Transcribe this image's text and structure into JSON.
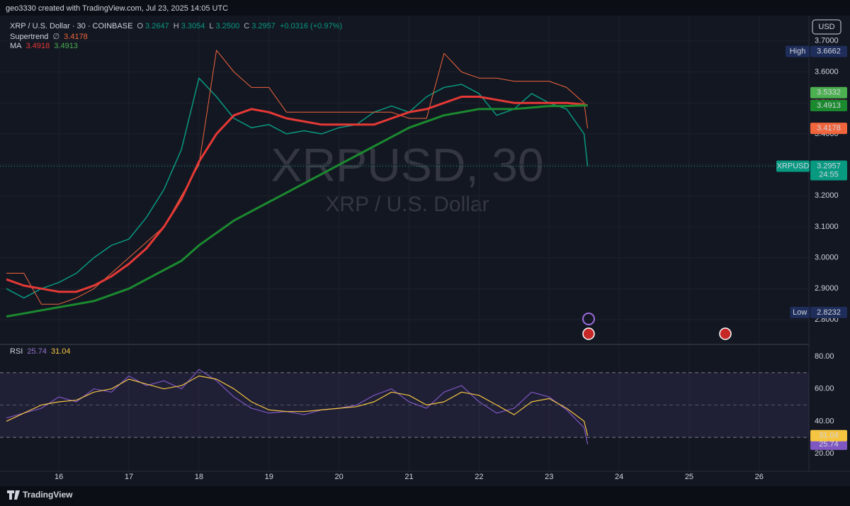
{
  "header": {
    "text": "geo3330 created with TradingView.com, Jul 23, 2025 14:05 UTC"
  },
  "footer": {
    "brand": "TradingView"
  },
  "currency": "USD",
  "legend": {
    "symbol": "XRP / U.S. Dollar · 30 · COINBASE",
    "o_label": "O",
    "o": "3.2647",
    "h_label": "H",
    "h": "3.3054",
    "l_label": "L",
    "l": "3.2500",
    "c_label": "C",
    "change": "+0.0316 (+0.97%)",
    "supertrend_label": "Supertrend",
    "supertrend_icon": "∅",
    "ma_label": "MA",
    "rsi_label": "RSI"
  },
  "chart_data": [
    {
      "type": "line",
      "title": "XRPUSD, 30",
      "subtitle": "XRP / U.S. Dollar",
      "x": [
        15.25,
        15.5,
        15.75,
        16,
        16.25,
        16.5,
        16.75,
        17,
        17.25,
        17.5,
        17.75,
        18,
        18.25,
        18.5,
        18.75,
        19,
        19.25,
        19.5,
        19.75,
        20,
        20.25,
        20.5,
        20.75,
        21,
        21.25,
        21.5,
        21.75,
        22,
        22.25,
        22.5,
        22.75,
        23,
        23.25,
        23.5,
        23.55
      ],
      "xlim": [
        15.24,
        26.71
      ],
      "xticks": [
        16,
        17,
        18,
        19,
        20,
        21,
        22,
        23,
        24,
        25,
        26
      ],
      "ylim": [
        2.7245,
        3.782
      ],
      "yticks": [
        {
          "value": 2.8,
          "label": "2.8000"
        },
        {
          "value": 2.9,
          "label": "2.9000"
        },
        {
          "value": 3.0,
          "label": "3.0000"
        },
        {
          "value": 3.1,
          "label": "3.1000"
        },
        {
          "value": 3.2,
          "label": "3.2000"
        },
        {
          "value": 3.3,
          "label": "3.3000"
        },
        {
          "value": 3.4,
          "label": "3.4000"
        },
        {
          "value": 3.5,
          "label": "3.5000"
        },
        {
          "value": 3.6,
          "label": "3.6000"
        },
        {
          "value": 3.7,
          "label": "3.7000"
        }
      ],
      "grid": true,
      "series": [
        {
          "color": "#089981",
          "width": 1.5,
          "values": [
            2.9,
            2.87,
            2.9,
            2.92,
            2.95,
            3.0,
            3.04,
            3.06,
            3.13,
            3.22,
            3.35,
            3.58,
            3.52,
            3.45,
            3.42,
            3.43,
            3.4,
            3.41,
            3.4,
            3.42,
            3.43,
            3.47,
            3.49,
            3.47,
            3.52,
            3.55,
            3.56,
            3.53,
            3.46,
            3.48,
            3.53,
            3.5,
            3.48,
            3.4,
            3.2957
          ]
        },
        {
          "color": "#f0653c",
          "width": 1,
          "axis_label": true,
          "values": [
            2.95,
            2.95,
            2.85,
            2.85,
            2.87,
            2.9,
            2.95,
            3.0,
            3.05,
            3.1,
            3.2,
            3.3,
            3.67,
            3.6,
            3.55,
            3.55,
            3.47,
            3.47,
            3.47,
            3.47,
            3.47,
            3.47,
            3.47,
            3.45,
            3.45,
            3.66,
            3.6,
            3.58,
            3.58,
            3.57,
            3.57,
            3.57,
            3.55,
            3.5,
            3.4178
          ]
        },
        {
          "color": "#e53935",
          "width": 3,
          "axis_label": true,
          "values": [
            2.93,
            2.91,
            2.9,
            2.89,
            2.89,
            2.91,
            2.94,
            2.98,
            3.03,
            3.1,
            3.19,
            3.31,
            3.4,
            3.46,
            3.48,
            3.47,
            3.45,
            3.44,
            3.43,
            3.43,
            3.43,
            3.43,
            3.45,
            3.47,
            3.48,
            3.5,
            3.52,
            3.52,
            3.51,
            3.5,
            3.5,
            3.5,
            3.5,
            3.495,
            3.4918
          ]
        },
        {
          "color": "#1b8a2f",
          "width": 3,
          "axis_label": true,
          "values": [
            2.81,
            2.82,
            2.83,
            2.84,
            2.85,
            2.86,
            2.88,
            2.9,
            2.93,
            2.96,
            2.99,
            3.04,
            3.08,
            3.12,
            3.15,
            3.18,
            3.21,
            3.24,
            3.27,
            3.3,
            3.33,
            3.36,
            3.39,
            3.42,
            3.44,
            3.46,
            3.47,
            3.48,
            3.48,
            3.48,
            3.485,
            3.49,
            3.49,
            3.492,
            3.4913
          ]
        }
      ],
      "price_labels": [
        {
          "label": "High",
          "value": 3.6662,
          "color": "#1e2d5a"
        },
        {
          "value": 3.5332,
          "color": "#4caf50"
        },
        {
          "label": "XRPUSD",
          "value": 3.2957,
          "sub": "24:55",
          "color": "#089981"
        },
        {
          "label": "Low",
          "value": 2.8232,
          "color": "#1e2d5a"
        }
      ]
    },
    {
      "type": "line",
      "title": "RSI",
      "x": [
        15.25,
        15.5,
        15.75,
        16,
        16.25,
        16.5,
        16.75,
        17,
        17.25,
        17.5,
        17.75,
        18,
        18.25,
        18.5,
        18.75,
        19,
        19.25,
        19.5,
        19.75,
        20,
        20.25,
        20.5,
        20.75,
        21,
        21.25,
        21.5,
        21.75,
        22,
        22.25,
        22.5,
        22.75,
        23,
        23.25,
        23.5,
        23.55
      ],
      "xlim": [
        15.24,
        26.71
      ],
      "ylim": [
        9.05,
        86.6
      ],
      "yticks": [
        {
          "value": 20,
          "label": "20.00"
        },
        {
          "value": 40,
          "label": "40.00"
        },
        {
          "value": 60,
          "label": "60.00"
        },
        {
          "value": 80,
          "label": "80.00"
        }
      ],
      "bands": [
        30,
        70
      ],
      "midline": 50,
      "series": [
        {
          "color": "#7e57c2",
          "width": 1.2,
          "axis_label": true,
          "values": [
            42,
            45,
            48,
            55,
            52,
            60,
            58,
            68,
            62,
            65,
            60,
            72,
            65,
            55,
            48,
            45,
            46,
            44,
            47,
            48,
            50,
            56,
            60,
            52,
            48,
            58,
            62,
            52,
            45,
            48,
            58,
            55,
            47,
            36,
            25.74
          ]
        },
        {
          "color": "#f5c542",
          "width": 1.2,
          "axis_label": true,
          "values": [
            40,
            45,
            50,
            52,
            53,
            58,
            60,
            66,
            63,
            60,
            62,
            68,
            66,
            60,
            52,
            47,
            46,
            46,
            47,
            48,
            49,
            52,
            58,
            56,
            50,
            52,
            58,
            56,
            50,
            44,
            52,
            54,
            48,
            40,
            31.04
          ]
        }
      ]
    }
  ]
}
